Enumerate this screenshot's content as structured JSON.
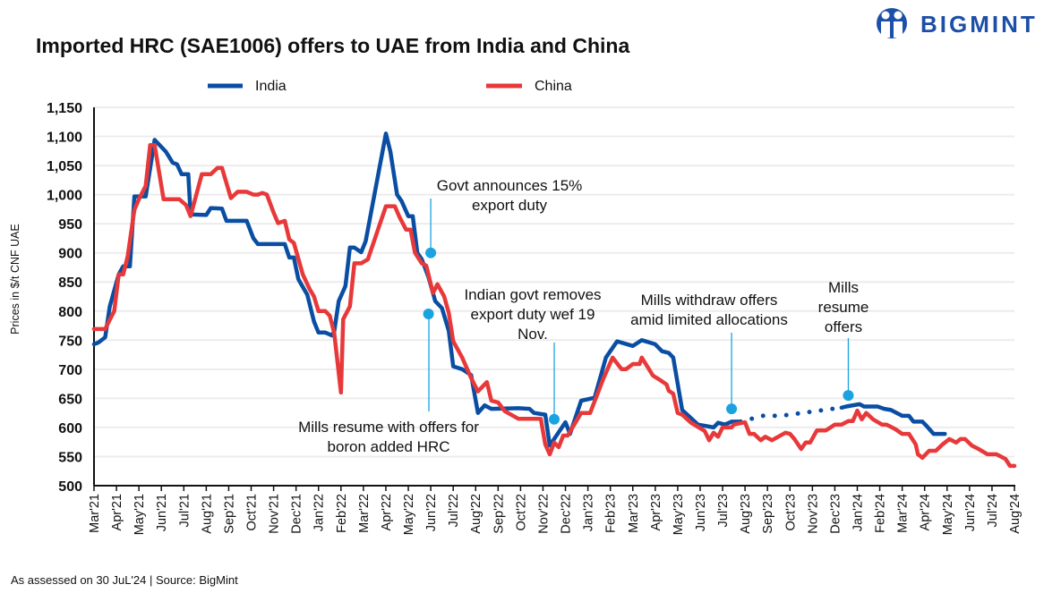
{
  "brand": {
    "logo_text": "BIGMINT",
    "color": "#1b4fa8"
  },
  "footer": "As assessed on 30 JuL'24 | Source: BigMint",
  "chart_data": {
    "type": "line",
    "title": "Imported HRC (SAE1006) offers to UAE from India and China",
    "xlabel": "",
    "ylabel": "Prices in $/t CNF UAE",
    "ylim": [
      500,
      1150
    ],
    "yticks": [
      500,
      550,
      600,
      650,
      700,
      750,
      800,
      850,
      900,
      950,
      1000,
      1050,
      1100,
      1150
    ],
    "ytick_labels": [
      "500",
      "550",
      "600",
      "650",
      "700",
      "750",
      "800",
      "850",
      "900",
      "950",
      "1,000",
      "1,050",
      "1,100",
      "1,150"
    ],
    "x_unit": "months since Mar'21",
    "xticks": [
      "Mar'21",
      "Apr'21",
      "May'21",
      "Jun'21",
      "Jul'21",
      "Aug'21",
      "Sep'21",
      "Oct'21",
      "Nov'21",
      "Dec'21",
      "Jan'22",
      "Feb'22",
      "Mar'22",
      "Apr'22",
      "May'22",
      "Jun'22",
      "Jul'22",
      "Aug'22",
      "Sep'22",
      "Oct'22",
      "Nov'22",
      "Dec'22",
      "Jan'23",
      "Feb'23",
      "Mar'23",
      "Apr'23",
      "May'23",
      "Jun'23",
      "Jul'23",
      "Aug'23",
      "Sep'23",
      "Oct'23",
      "Nov'23",
      "Dec'23",
      "Jan'24",
      "Feb'24",
      "Mar'24",
      "Apr'24",
      "May'24",
      "Jun'24",
      "Jul'24",
      "Aug'24"
    ],
    "grid": true,
    "legend_position": "top",
    "series": [
      {
        "name": "India",
        "color": "#0a4ea3",
        "style": "solid",
        "points": [
          [
            0,
            743
          ],
          [
            0.2,
            746
          ],
          [
            0.5,
            755
          ],
          [
            0.7,
            808
          ],
          [
            1.1,
            863
          ],
          [
            1.3,
            877
          ],
          [
            1.6,
            877
          ],
          [
            1.8,
            997
          ],
          [
            2.3,
            997
          ],
          [
            2.7,
            1094
          ],
          [
            3.2,
            1074
          ],
          [
            3.5,
            1055
          ],
          [
            3.7,
            1052
          ],
          [
            3.9,
            1035
          ],
          [
            4.2,
            1035
          ],
          [
            4.3,
            966
          ],
          [
            5.0,
            965
          ],
          [
            5.2,
            977
          ],
          [
            5.7,
            976
          ],
          [
            5.9,
            955
          ],
          [
            6.8,
            955
          ],
          [
            7.1,
            925
          ],
          [
            7.3,
            915
          ],
          [
            8.5,
            915
          ],
          [
            8.7,
            892
          ],
          [
            8.9,
            892
          ],
          [
            9.1,
            855
          ],
          [
            9.2,
            848
          ],
          [
            9.5,
            828
          ],
          [
            9.8,
            782
          ],
          [
            10.0,
            763
          ],
          [
            10.3,
            763
          ],
          [
            10.6,
            758
          ],
          [
            10.7,
            765
          ],
          [
            10.9,
            817
          ],
          [
            11.2,
            843
          ],
          [
            11.4,
            909
          ],
          [
            11.6,
            909
          ],
          [
            11.9,
            901
          ],
          [
            12.1,
            920
          ],
          [
            13.0,
            1105
          ],
          [
            13.2,
            1074
          ],
          [
            13.5,
            1000
          ],
          [
            13.7,
            989
          ],
          [
            14.0,
            963
          ],
          [
            14.2,
            963
          ],
          [
            14.4,
            900
          ],
          [
            14.6,
            889
          ],
          [
            14.9,
            858
          ],
          [
            15.2,
            817
          ],
          [
            15.5,
            805
          ],
          [
            15.8,
            766
          ],
          [
            16.0,
            705
          ],
          [
            16.4,
            700
          ],
          [
            16.8,
            690
          ],
          [
            17.1,
            625
          ],
          [
            17.4,
            638
          ],
          [
            17.7,
            632
          ],
          [
            18.9,
            633
          ],
          [
            19.4,
            632
          ],
          [
            19.6,
            625
          ],
          [
            20.1,
            622
          ],
          [
            20.3,
            569
          ],
          [
            21.0,
            609
          ],
          [
            21.2,
            589
          ],
          [
            21.7,
            646
          ],
          [
            22.3,
            651
          ],
          [
            22.8,
            720
          ],
          [
            23.3,
            748
          ],
          [
            24.0,
            740
          ],
          [
            24.4,
            750
          ],
          [
            25.0,
            743
          ],
          [
            25.3,
            731
          ],
          [
            25.6,
            728
          ],
          [
            25.8,
            720
          ],
          [
            26.2,
            630
          ],
          [
            26.9,
            605
          ],
          [
            27.6,
            600
          ],
          [
            27.8,
            608
          ],
          [
            28.1,
            605
          ],
          [
            28.4,
            610
          ],
          [
            28.8,
            610
          ]
        ]
      },
      {
        "name": "India (interpolated)",
        "color": "#0a4ea3",
        "style": "dotted",
        "points": [
          [
            28.8,
            610
          ],
          [
            29.8,
            620
          ],
          [
            30.6,
            620
          ],
          [
            33.3,
            634
          ]
        ]
      },
      {
        "name": "India (continued)",
        "color": "#0a4ea3",
        "style": "solid",
        "points": [
          [
            33.3,
            634
          ],
          [
            33.5,
            636
          ],
          [
            34.1,
            640
          ],
          [
            34.3,
            636
          ],
          [
            34.9,
            636
          ],
          [
            35.2,
            632
          ],
          [
            35.5,
            630
          ],
          [
            35.7,
            626
          ],
          [
            36.0,
            620
          ],
          [
            36.3,
            620
          ],
          [
            36.5,
            610
          ],
          [
            36.9,
            610
          ],
          [
            37.1,
            602
          ],
          [
            37.4,
            589
          ],
          [
            37.9,
            589
          ]
        ]
      },
      {
        "name": "China",
        "color": "#e8393a",
        "style": "solid",
        "points": [
          [
            0,
            769
          ],
          [
            0.5,
            769
          ],
          [
            0.7,
            785
          ],
          [
            0.9,
            800
          ],
          [
            1.1,
            863
          ],
          [
            1.3,
            863
          ],
          [
            1.5,
            894
          ],
          [
            1.8,
            974
          ],
          [
            2.0,
            992
          ],
          [
            2.3,
            1015
          ],
          [
            2.5,
            1085
          ],
          [
            2.7,
            1085
          ],
          [
            3.1,
            992
          ],
          [
            3.8,
            992
          ],
          [
            4.1,
            982
          ],
          [
            4.3,
            963
          ],
          [
            4.8,
            1035
          ],
          [
            5.2,
            1035
          ],
          [
            5.5,
            1046
          ],
          [
            5.7,
            1046
          ],
          [
            5.9,
            1020
          ],
          [
            6.1,
            994
          ],
          [
            6.4,
            1005
          ],
          [
            6.8,
            1005
          ],
          [
            7.1,
            1000
          ],
          [
            7.3,
            1000
          ],
          [
            7.5,
            1003
          ],
          [
            7.7,
            1000
          ],
          [
            8.0,
            969
          ],
          [
            8.2,
            951
          ],
          [
            8.5,
            955
          ],
          [
            8.7,
            923
          ],
          [
            8.9,
            917
          ],
          [
            9.3,
            863
          ],
          [
            9.6,
            838
          ],
          [
            9.8,
            825
          ],
          [
            10.0,
            800
          ],
          [
            10.3,
            800
          ],
          [
            10.5,
            792
          ],
          [
            10.7,
            762
          ],
          [
            11.0,
            660
          ],
          [
            11.1,
            786
          ],
          [
            11.4,
            808
          ],
          [
            11.6,
            882
          ],
          [
            11.9,
            882
          ],
          [
            12.2,
            889
          ],
          [
            13.0,
            980
          ],
          [
            13.4,
            980
          ],
          [
            13.6,
            962
          ],
          [
            13.9,
            940
          ],
          [
            14.1,
            940
          ],
          [
            14.3,
            900
          ],
          [
            14.6,
            882
          ],
          [
            14.8,
            878
          ],
          [
            15.1,
            831
          ],
          [
            15.3,
            846
          ],
          [
            15.6,
            825
          ],
          [
            15.8,
            797
          ],
          [
            16.0,
            748
          ],
          [
            16.4,
            720
          ],
          [
            16.8,
            685
          ],
          [
            17.1,
            662
          ],
          [
            17.5,
            678
          ],
          [
            17.7,
            646
          ],
          [
            18.0,
            643
          ],
          [
            18.3,
            628
          ],
          [
            18.9,
            615
          ],
          [
            19.9,
            615
          ],
          [
            20.1,
            571
          ],
          [
            20.3,
            554
          ],
          [
            20.5,
            574
          ],
          [
            20.7,
            566
          ],
          [
            20.9,
            586
          ],
          [
            21.1,
            586
          ],
          [
            21.7,
            625
          ],
          [
            22.1,
            625
          ],
          [
            22.7,
            685
          ],
          [
            23.1,
            720
          ],
          [
            23.5,
            700
          ],
          [
            23.7,
            700
          ],
          [
            24.0,
            709
          ],
          [
            24.3,
            709
          ],
          [
            24.4,
            720
          ],
          [
            24.9,
            689
          ],
          [
            25.2,
            682
          ],
          [
            25.5,
            674
          ],
          [
            25.6,
            663
          ],
          [
            25.8,
            658
          ],
          [
            26.0,
            625
          ],
          [
            26.2,
            622
          ],
          [
            26.6,
            608
          ],
          [
            27.2,
            594
          ],
          [
            27.4,
            578
          ],
          [
            27.6,
            591
          ],
          [
            27.8,
            584
          ],
          [
            28.0,
            600
          ],
          [
            28.4,
            600
          ],
          [
            28.5,
            605
          ],
          [
            29.0,
            609
          ],
          [
            29.2,
            589
          ],
          [
            29.4,
            589
          ],
          [
            29.7,
            578
          ],
          [
            29.9,
            584
          ],
          [
            30.2,
            578
          ],
          [
            30.8,
            591
          ],
          [
            31.0,
            589
          ],
          [
            31.2,
            580
          ],
          [
            31.5,
            563
          ],
          [
            31.7,
            574
          ],
          [
            31.9,
            574
          ],
          [
            32.2,
            595
          ],
          [
            32.6,
            595
          ],
          [
            33.0,
            605
          ],
          [
            33.3,
            605
          ],
          [
            33.6,
            611
          ],
          [
            33.8,
            611
          ],
          [
            34.0,
            629
          ],
          [
            34.2,
            614
          ],
          [
            34.4,
            625
          ],
          [
            34.7,
            614
          ],
          [
            35.1,
            605
          ],
          [
            35.3,
            605
          ],
          [
            35.7,
            597
          ],
          [
            36.0,
            589
          ],
          [
            36.3,
            589
          ],
          [
            36.6,
            571
          ],
          [
            36.7,
            554
          ],
          [
            36.9,
            548
          ],
          [
            37.2,
            560
          ],
          [
            37.5,
            560
          ],
          [
            37.8,
            571
          ],
          [
            38.1,
            580
          ],
          [
            38.4,
            574
          ],
          [
            38.6,
            580
          ],
          [
            38.8,
            580
          ],
          [
            39.1,
            569
          ],
          [
            39.4,
            563
          ],
          [
            39.8,
            554
          ],
          [
            40.2,
            554
          ],
          [
            40.6,
            546
          ],
          [
            40.8,
            534
          ],
          [
            41.0,
            534
          ]
        ]
      }
    ],
    "legend": [
      "India",
      "China"
    ],
    "annotations": [
      {
        "lines": [
          "Govt announces 15%",
          "export duty"
        ],
        "marker": [
          15.0,
          900
        ],
        "color": "#1aa3e0"
      },
      {
        "lines": [
          "Mills resume with offers for",
          "boron added HRC"
        ],
        "marker": [
          14.9,
          795
        ],
        "color": "#1aa3e0"
      },
      {
        "lines": [
          "Indian govt removes",
          "export duty wef 19",
          "Nov."
        ],
        "marker": [
          20.5,
          614
        ],
        "color": "#1aa3e0"
      },
      {
        "lines": [
          "Mills withdraw offers",
          "amid limited allocations"
        ],
        "marker": [
          28.4,
          632
        ],
        "color": "#1aa3e0"
      },
      {
        "lines": [
          "Mills",
          "resume",
          "offers"
        ],
        "marker": [
          33.6,
          655
        ],
        "color": "#1aa3e0"
      }
    ]
  }
}
